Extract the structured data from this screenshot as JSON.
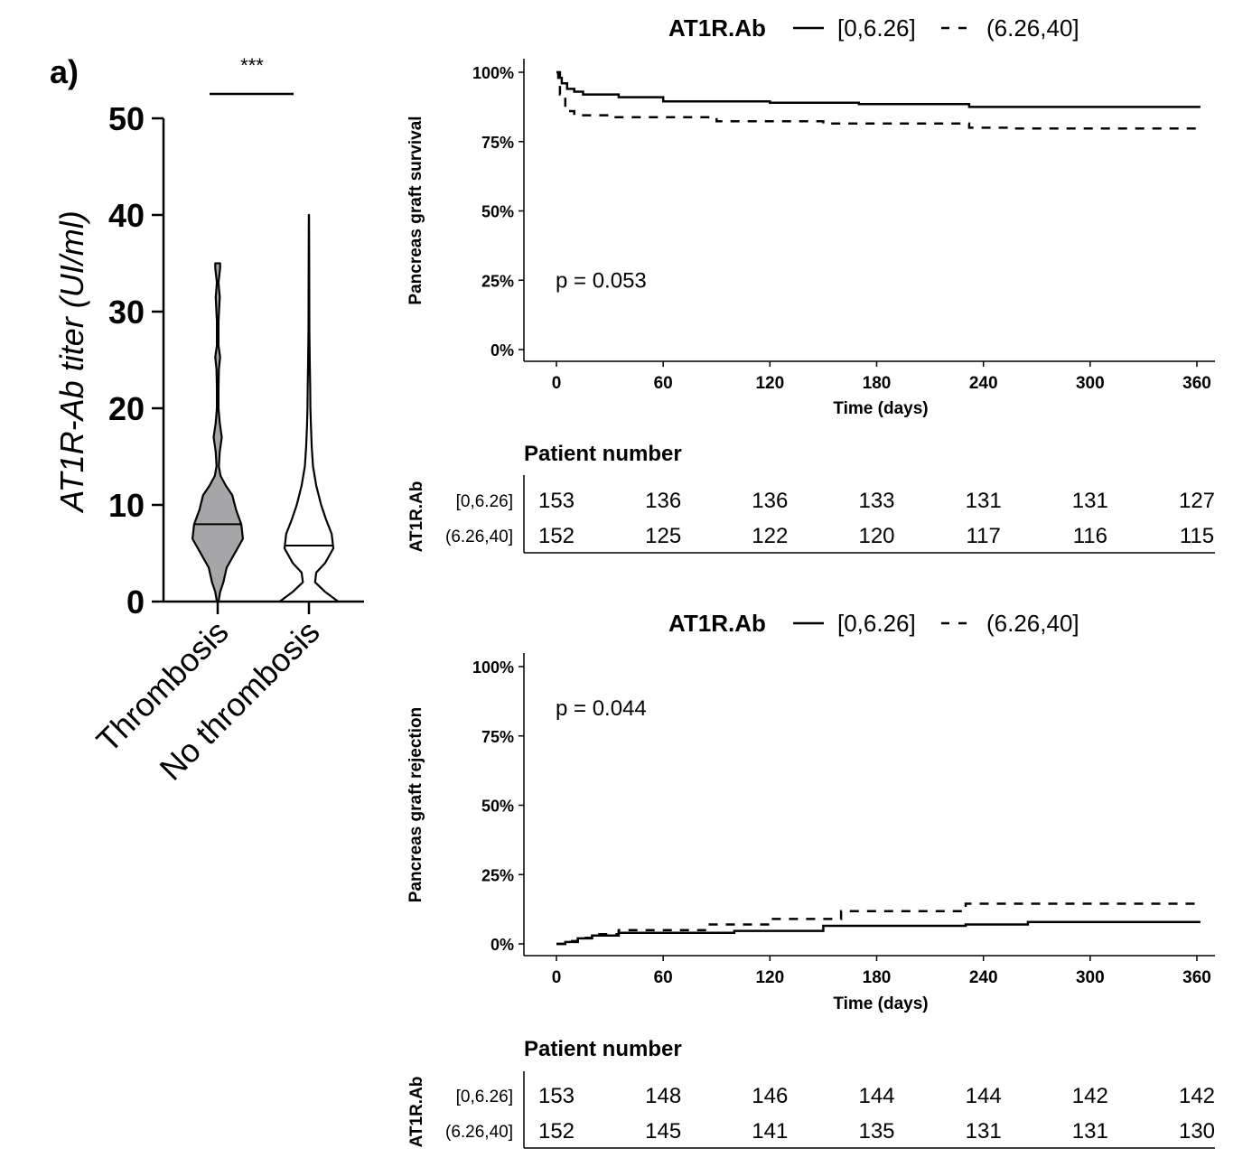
{
  "panel_label": "a)",
  "chart_data": [
    {
      "type": "violin",
      "ylabel": "AT1R-Ab titer (UI/ml)",
      "ylim": [
        0,
        50
      ],
      "yticks": [
        "0",
        "10",
        "20",
        "30",
        "40",
        "50"
      ],
      "ytick_values": [
        0,
        10,
        20,
        30,
        40,
        50
      ],
      "categories": [
        "Thrombosis",
        "No thrombosis"
      ],
      "significance": "***",
      "groups": [
        {
          "name": "Thrombosis",
          "fill": "#a6a6a8",
          "median": 8,
          "range": [
            0,
            35
          ],
          "profile": [
            [
              0,
              0.02
            ],
            [
              1,
              0.06
            ],
            [
              2,
              0.14
            ],
            [
              3.5,
              0.22
            ],
            [
              5,
              0.42
            ],
            [
              6.5,
              0.62
            ],
            [
              8,
              0.58
            ],
            [
              9.5,
              0.45
            ],
            [
              11,
              0.36
            ],
            [
              12,
              0.2
            ],
            [
              13,
              0.07
            ],
            [
              14,
              0.03
            ],
            [
              15.5,
              0.05
            ],
            [
              17,
              0.1
            ],
            [
              18.5,
              0.05
            ],
            [
              20,
              0.02
            ],
            [
              22,
              0.02
            ],
            [
              24,
              0.03
            ],
            [
              25.3,
              0.06
            ],
            [
              26.5,
              0.02
            ],
            [
              29,
              0.02
            ],
            [
              31.5,
              0.05
            ],
            [
              33,
              0.02
            ],
            [
              34.5,
              0.06
            ],
            [
              35,
              0.06
            ]
          ]
        },
        {
          "name": "No thrombosis",
          "fill": "#ffffff",
          "median": 5.8,
          "range": [
            0,
            40
          ],
          "profile": [
            [
              0,
              0.72
            ],
            [
              1,
              0.4
            ],
            [
              2,
              0.15
            ],
            [
              3,
              0.18
            ],
            [
              4,
              0.4
            ],
            [
              5.5,
              0.6
            ],
            [
              7,
              0.56
            ],
            [
              8.5,
              0.42
            ],
            [
              10,
              0.3
            ],
            [
              12,
              0.18
            ],
            [
              14,
              0.1
            ],
            [
              16,
              0.07
            ],
            [
              18,
              0.05
            ],
            [
              20,
              0.035
            ],
            [
              22,
              0.03
            ],
            [
              25,
              0.02
            ],
            [
              28,
              0.012
            ],
            [
              31,
              0.01
            ],
            [
              35,
              0.006
            ],
            [
              38,
              0.004
            ],
            [
              40,
              0.003
            ]
          ]
        }
      ]
    },
    {
      "type": "line",
      "title": "AT1R.Ab",
      "legend": [
        {
          "label": "[0,6.26]",
          "style": "solid"
        },
        {
          "label": "(6.26,40]",
          "style": "dashed"
        }
      ],
      "legend_placement": "top",
      "xlabel": "Time (days)",
      "ylabel": "Pancreas graft survival",
      "xlim": [
        -8,
        370
      ],
      "ylim": [
        0,
        1.05
      ],
      "xticks": [
        0,
        60,
        120,
        180,
        240,
        300,
        360
      ],
      "yticks": [
        "0%",
        "25%",
        "50%",
        "75%",
        "100%"
      ],
      "ytick_values": [
        0,
        0.25,
        0.5,
        0.75,
        1.0
      ],
      "annotation": "p = 0.053",
      "annotation_at": [
        0,
        0.25
      ],
      "series": [
        {
          "name": "[0,6.26]",
          "style": "solid",
          "x": [
            0,
            1,
            3,
            6,
            10,
            15,
            35,
            60,
            120,
            170,
            232,
            362
          ],
          "y": [
            1.0,
            0.98,
            0.96,
            0.94,
            0.93,
            0.92,
            0.91,
            0.895,
            0.89,
            0.885,
            0.875,
            0.875
          ]
        },
        {
          "name": "(6.26,40]",
          "style": "dashed",
          "x": [
            0,
            2,
            5,
            10,
            30,
            90,
            150,
            232,
            255,
            362
          ],
          "y": [
            1.0,
            0.92,
            0.86,
            0.845,
            0.838,
            0.823,
            0.815,
            0.8,
            0.797,
            0.797
          ]
        }
      ],
      "risk_table": {
        "title": "Patient number",
        "strata_title": "AT1R.Ab",
        "rows": [
          {
            "label": "[0,6.26]",
            "values": [
              "153",
              "136",
              "136",
              "133",
              "131",
              "131",
              "127"
            ]
          },
          {
            "label": "(6.26,40]",
            "values": [
              "152",
              "125",
              "122",
              "120",
              "117",
              "116",
              "115"
            ]
          }
        ]
      }
    },
    {
      "type": "line",
      "title": "AT1R.Ab",
      "legend": [
        {
          "label": "[0,6.26]",
          "style": "solid"
        },
        {
          "label": "(6.26,40]",
          "style": "dashed"
        }
      ],
      "legend_placement": "top",
      "xlabel": "Time (days)",
      "ylabel": "Pancreas graft rejection",
      "xlim": [
        -8,
        370
      ],
      "ylim": [
        0,
        1.05
      ],
      "xticks": [
        0,
        60,
        120,
        180,
        240,
        300,
        360
      ],
      "yticks": [
        "0%",
        "25%",
        "50%",
        "75%",
        "100%"
      ],
      "ytick_values": [
        0,
        0.25,
        0.5,
        0.75,
        1.0
      ],
      "annotation": "p = 0.044",
      "annotation_at": [
        0,
        0.85
      ],
      "series": [
        {
          "name": "[0,6.26]",
          "style": "solid",
          "x": [
            0,
            5,
            12,
            20,
            35,
            100,
            150,
            230,
            265,
            362
          ],
          "y": [
            0,
            0.007,
            0.02,
            0.03,
            0.04,
            0.047,
            0.065,
            0.07,
            0.079,
            0.079
          ]
        },
        {
          "name": "(6.26,40]",
          "style": "dashed",
          "x": [
            0,
            5,
            12,
            20,
            35,
            85,
            120,
            160,
            230,
            362
          ],
          "y": [
            0,
            0.01,
            0.022,
            0.035,
            0.05,
            0.07,
            0.09,
            0.118,
            0.145,
            0.152
          ]
        }
      ],
      "risk_table": {
        "title": "Patient number",
        "strata_title": "AT1R.Ab",
        "rows": [
          {
            "label": "[0,6.26]",
            "values": [
              "153",
              "148",
              "146",
              "144",
              "144",
              "142",
              "142"
            ]
          },
          {
            "label": "(6.26,40]",
            "values": [
              "152",
              "145",
              "141",
              "135",
              "131",
              "131",
              "130"
            ]
          }
        ]
      }
    }
  ]
}
